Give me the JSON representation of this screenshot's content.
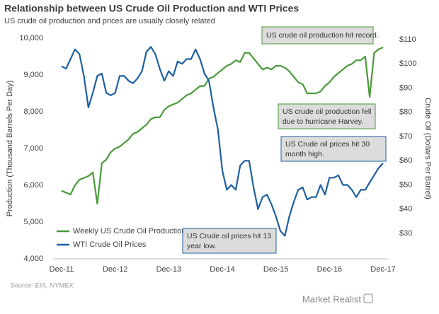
{
  "chart_data": {
    "type": "line",
    "title": "Relationship between US Crude Oil Production and WTI Prices",
    "subtitle": "US crude oil production and prices are usually closely related",
    "y_label": "Production (Thousand  Barrels Per Day)",
    "y2_label": "Crude Oil (Dollars Per Barrel)",
    "source": "Source: EIA, NYMEX",
    "brand": "Market Realist",
    "annotations": [
      [
        "US crude oil production hit record."
      ],
      [
        "US crude oil production fell",
        "due to hurricane Harvey."
      ],
      [
        "US Crude oil prices hit 30",
        "month high."
      ],
      [
        "US Crude oil prices hit 13",
        "year low."
      ]
    ],
    "categories": [
      "Dec-11",
      null,
      null,
      null,
      null,
      null,
      null,
      null,
      null,
      null,
      null,
      null,
      "Dec-12",
      null,
      null,
      null,
      null,
      null,
      null,
      null,
      null,
      null,
      null,
      null,
      "Dec-13",
      null,
      null,
      null,
      null,
      null,
      null,
      null,
      null,
      null,
      null,
      null,
      "Dec-14",
      null,
      null,
      null,
      null,
      null,
      null,
      null,
      null,
      null,
      null,
      null,
      "Dec-15",
      null,
      null,
      null,
      null,
      null,
      null,
      null,
      null,
      null,
      null,
      null,
      "Dec-16",
      null,
      null,
      null,
      null,
      null,
      null,
      null,
      null,
      null,
      null,
      null,
      "Dec-17"
    ],
    "series": [
      {
        "name": "Weekly US Crude Oil Production",
        "color": "#4a9a3a",
        "values": [
          5850,
          5800,
          5750,
          6000,
          6150,
          6200,
          6250,
          6350,
          5500,
          6600,
          6700,
          6900,
          7000,
          7050,
          7150,
          7250,
          7400,
          7450,
          7550,
          7650,
          7800,
          7850,
          7850,
          8050,
          8150,
          8200,
          8250,
          8350,
          8450,
          8500,
          8600,
          8700,
          8700,
          8900,
          8950,
          9050,
          9150,
          9250,
          9300,
          9400,
          9350,
          9600,
          9600,
          9450,
          9300,
          9150,
          9200,
          9150,
          9250,
          9250,
          9200,
          9100,
          8950,
          8800,
          8750,
          8500,
          8500,
          8500,
          8550,
          8700,
          8800,
          8950,
          9050,
          9150,
          9250,
          9300,
          9400,
          9400,
          9500,
          8400,
          9600,
          9700,
          9750
        ]
      },
      {
        "name": "WTI Crude Oil Prices",
        "color": "#1f5fa0",
        "axis": "y2",
        "values": [
          99,
          98,
          102,
          106,
          104,
          95,
          82,
          88,
          95,
          96,
          88,
          87,
          88,
          95,
          95,
          93,
          92,
          94,
          97,
          105,
          107,
          104,
          98,
          93,
          97,
          95,
          101,
          100,
          102,
          102,
          106,
          102,
          96,
          93,
          82,
          73,
          56,
          48,
          50,
          48,
          58,
          60,
          60,
          49,
          40,
          45,
          46,
          42,
          37,
          31,
          29,
          37,
          43,
          48,
          49,
          44,
          45,
          45,
          50,
          46,
          53,
          53,
          54,
          50,
          50,
          48,
          45,
          48,
          48,
          51,
          54,
          57,
          59
        ]
      }
    ],
    "ylim": [
      4000,
      10000
    ],
    "yticks": [
      {
        "value": 4000,
        "label": "4,000"
      },
      {
        "value": 5000,
        "label": "5,000"
      },
      {
        "value": 6000,
        "label": "6,000"
      },
      {
        "value": 7000,
        "label": "7,000"
      },
      {
        "value": 8000,
        "label": "8,000"
      },
      {
        "value": 9000,
        "label": "9,000"
      },
      {
        "value": 10000,
        "label": "10,000"
      }
    ],
    "y2lim": [
      19.5,
      110.6
    ],
    "y2ticks": [
      {
        "value": 30,
        "label": "$30"
      },
      {
        "value": 40,
        "label": "$40"
      },
      {
        "value": 50,
        "label": "$50"
      },
      {
        "value": 60,
        "label": "$60"
      },
      {
        "value": 70,
        "label": "$70"
      },
      {
        "value": 80,
        "label": "$80"
      },
      {
        "value": 90,
        "label": "$90"
      },
      {
        "value": 100,
        "label": "$100"
      },
      {
        "value": 110,
        "label": "$110"
      }
    ],
    "legend": "bottom-left",
    "grid": false
  }
}
